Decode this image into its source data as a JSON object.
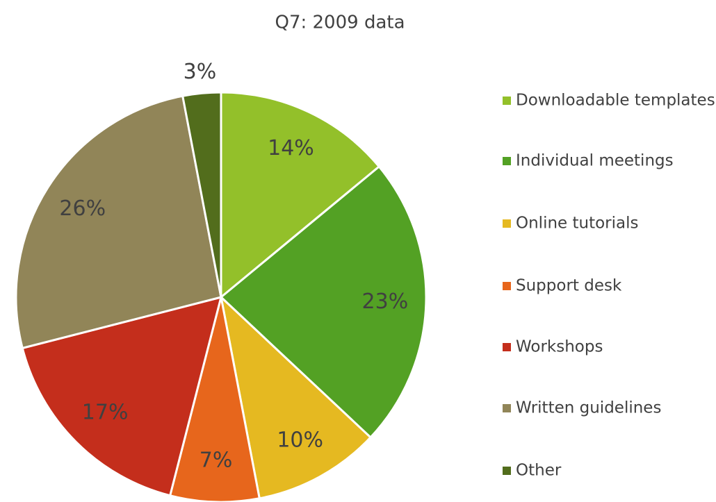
{
  "chart_data": {
    "type": "pie",
    "title": "Q7: 2009 data",
    "categories": [
      "Downloadable templates",
      "Individual meetings",
      "Online tutorials",
      "Support desk",
      "Workshops",
      "Written guidelines",
      "Other"
    ],
    "values": [
      14,
      23,
      10,
      7,
      17,
      26,
      3
    ],
    "value_labels": [
      "14%",
      "23%",
      "10%",
      "7%",
      "17%",
      "26%",
      "3%"
    ],
    "colors": [
      "#93c02a",
      "#53a124",
      "#e5b921",
      "#e7661c",
      "#c42e1c",
      "#918558",
      "#526d1c"
    ],
    "legend": "right"
  }
}
